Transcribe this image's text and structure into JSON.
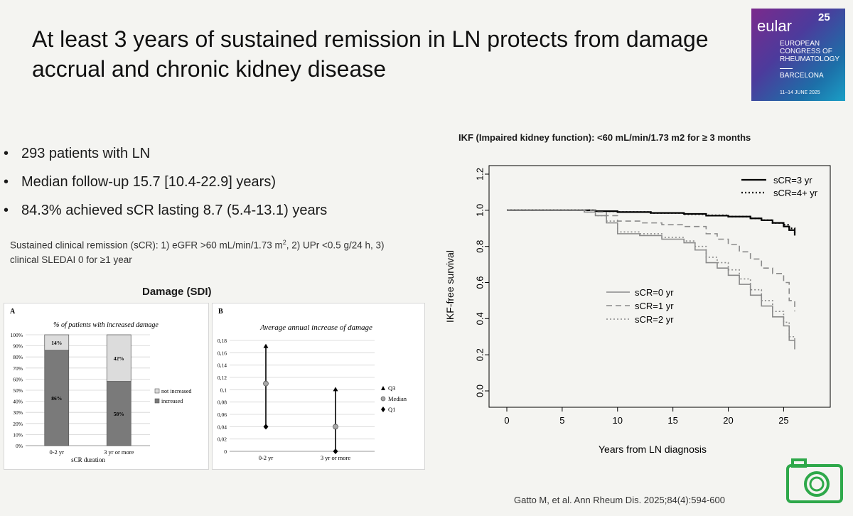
{
  "slide": {
    "title": "At least 3 years of sustained remission in LN protects from damage accrual and chronic kidney disease",
    "bullets": [
      "293 patients with LN",
      "Median follow-up 15.7 [10.4-22.9] years)",
      "84.3% achieved sCR lasting 8.7 (5.4-13.1) years"
    ],
    "definition_prefix": "Sustained clinical remission (sCR): 1) eGFR >60 mL/min/1.73 m",
    "definition_sup": "2",
    "definition_suffix": ", 2) UPr <0.5 g/24 h, 3) clinical SLEDAI 0 for ≥1 year",
    "damage_title": "Damage (SDI)",
    "citation": "Gatto M, et al. Ann Rheum Dis. 2025;84(4):594-600"
  },
  "logo": {
    "brand": "eular",
    "edition": "25",
    "congress": "EUROPEAN CONGRESS OF RHEUMATOLOGY",
    "city": "BARCELONA",
    "dates": "11–14 JUNE 2025"
  },
  "colors": {
    "dark_bar": "#7a7a7a",
    "light_bar": "#dcdcdc",
    "logo_camera": "#2ea84a"
  },
  "chart_data": [
    {
      "type": "bar",
      "panel": "A",
      "title": "% of patients with increased damage",
      "xlabel": "sCR duration",
      "categories": [
        "0-2 yr",
        "3 yr or more"
      ],
      "series": [
        {
          "name": "increased",
          "values": [
            86,
            58
          ],
          "labels": [
            "86%",
            "58%"
          ]
        },
        {
          "name": "not increased",
          "values": [
            14,
            42
          ],
          "labels": [
            "14%",
            "42%"
          ]
        }
      ],
      "ylim": [
        0,
        100
      ],
      "yticks": [
        "0%",
        "10%",
        "20%",
        "30%",
        "40%",
        "50%",
        "60%",
        "70%",
        "80%",
        "90%",
        "100%"
      ],
      "stacked": true,
      "grid": true,
      "legend_position": "right"
    },
    {
      "type": "scatter",
      "panel": "B",
      "title": "Average annual increase of damage",
      "categories": [
        "0-2 yr",
        "3 yr or more"
      ],
      "series": [
        {
          "name": "Q3",
          "values": [
            0.17,
            0.1
          ]
        },
        {
          "name": "Median",
          "values": [
            0.11,
            0.04
          ]
        },
        {
          "name": "Q1",
          "values": [
            0.04,
            0.0
          ]
        }
      ],
      "ylim": [
        0,
        0.18
      ],
      "yticks": [
        "0",
        "0,02",
        "0,04",
        "0,06",
        "0,08",
        "0,1",
        "0,12",
        "0,14",
        "0,16",
        "0,18"
      ],
      "grid": true,
      "legend_position": "right"
    },
    {
      "type": "line",
      "title": "IKF (Impaired kidney function): <60 mL/min/1.73 m2 for ≥ 3 months",
      "xlabel": "Years from LN diagnosis",
      "ylabel": "IKF-free survival",
      "xlim": [
        0,
        26
      ],
      "ylim": [
        0,
        1.2
      ],
      "xticks": [
        "0",
        "5",
        "10",
        "15",
        "20",
        "25"
      ],
      "yticks": [
        "0.0",
        "0.2",
        "0.4",
        "0.6",
        "0.8",
        "1.0",
        "1.2"
      ],
      "step": true,
      "series": [
        {
          "name": "sCR=3 yr",
          "style": "solid-thick",
          "x": [
            0,
            5,
            8,
            10,
            13,
            16,
            18,
            20,
            22,
            23,
            24,
            25,
            25.5,
            26
          ],
          "y": [
            1.0,
            1.0,
            0.995,
            0.99,
            0.985,
            0.98,
            0.97,
            0.965,
            0.955,
            0.945,
            0.93,
            0.91,
            0.89,
            0.86
          ]
        },
        {
          "name": "sCR=4+ yr",
          "style": "dotted-thick",
          "x": [
            0,
            5,
            8,
            10,
            13,
            16,
            18,
            20,
            22,
            23,
            24,
            25,
            25.5,
            26
          ],
          "y": [
            1.0,
            1.0,
            0.995,
            0.99,
            0.985,
            0.978,
            0.972,
            0.965,
            0.955,
            0.945,
            0.93,
            0.92,
            0.9,
            0.87
          ]
        },
        {
          "name": "sCR=0 yr",
          "style": "solid-thin",
          "x": [
            0,
            5,
            7,
            8,
            9,
            10,
            12,
            14,
            16,
            17,
            18,
            19,
            20,
            21,
            22,
            23,
            24,
            25,
            25.5,
            26
          ],
          "y": [
            1.0,
            1.0,
            0.99,
            0.97,
            0.93,
            0.87,
            0.86,
            0.84,
            0.82,
            0.78,
            0.71,
            0.68,
            0.64,
            0.59,
            0.53,
            0.47,
            0.41,
            0.36,
            0.28,
            0.23
          ]
        },
        {
          "name": "sCR=1 yr",
          "style": "dashed",
          "x": [
            0,
            5,
            8,
            9,
            10,
            12,
            14,
            16,
            18,
            19,
            20,
            21,
            22,
            23,
            24,
            25,
            25.5,
            26
          ],
          "y": [
            1.0,
            1.0,
            0.99,
            0.97,
            0.94,
            0.93,
            0.92,
            0.91,
            0.87,
            0.84,
            0.81,
            0.77,
            0.73,
            0.68,
            0.65,
            0.6,
            0.5,
            0.44
          ]
        },
        {
          "name": "sCR=2 yr",
          "style": "dotted",
          "x": [
            0,
            5,
            7,
            8,
            9,
            10,
            12,
            14,
            16,
            17,
            18,
            19,
            20,
            21,
            22,
            23,
            24,
            25,
            25.5,
            26
          ],
          "y": [
            1.0,
            1.0,
            0.99,
            0.97,
            0.94,
            0.88,
            0.87,
            0.85,
            0.83,
            0.8,
            0.74,
            0.71,
            0.67,
            0.62,
            0.56,
            0.5,
            0.44,
            0.38,
            0.3,
            0.27
          ]
        }
      ],
      "legend_position": "top-right and middle"
    }
  ]
}
